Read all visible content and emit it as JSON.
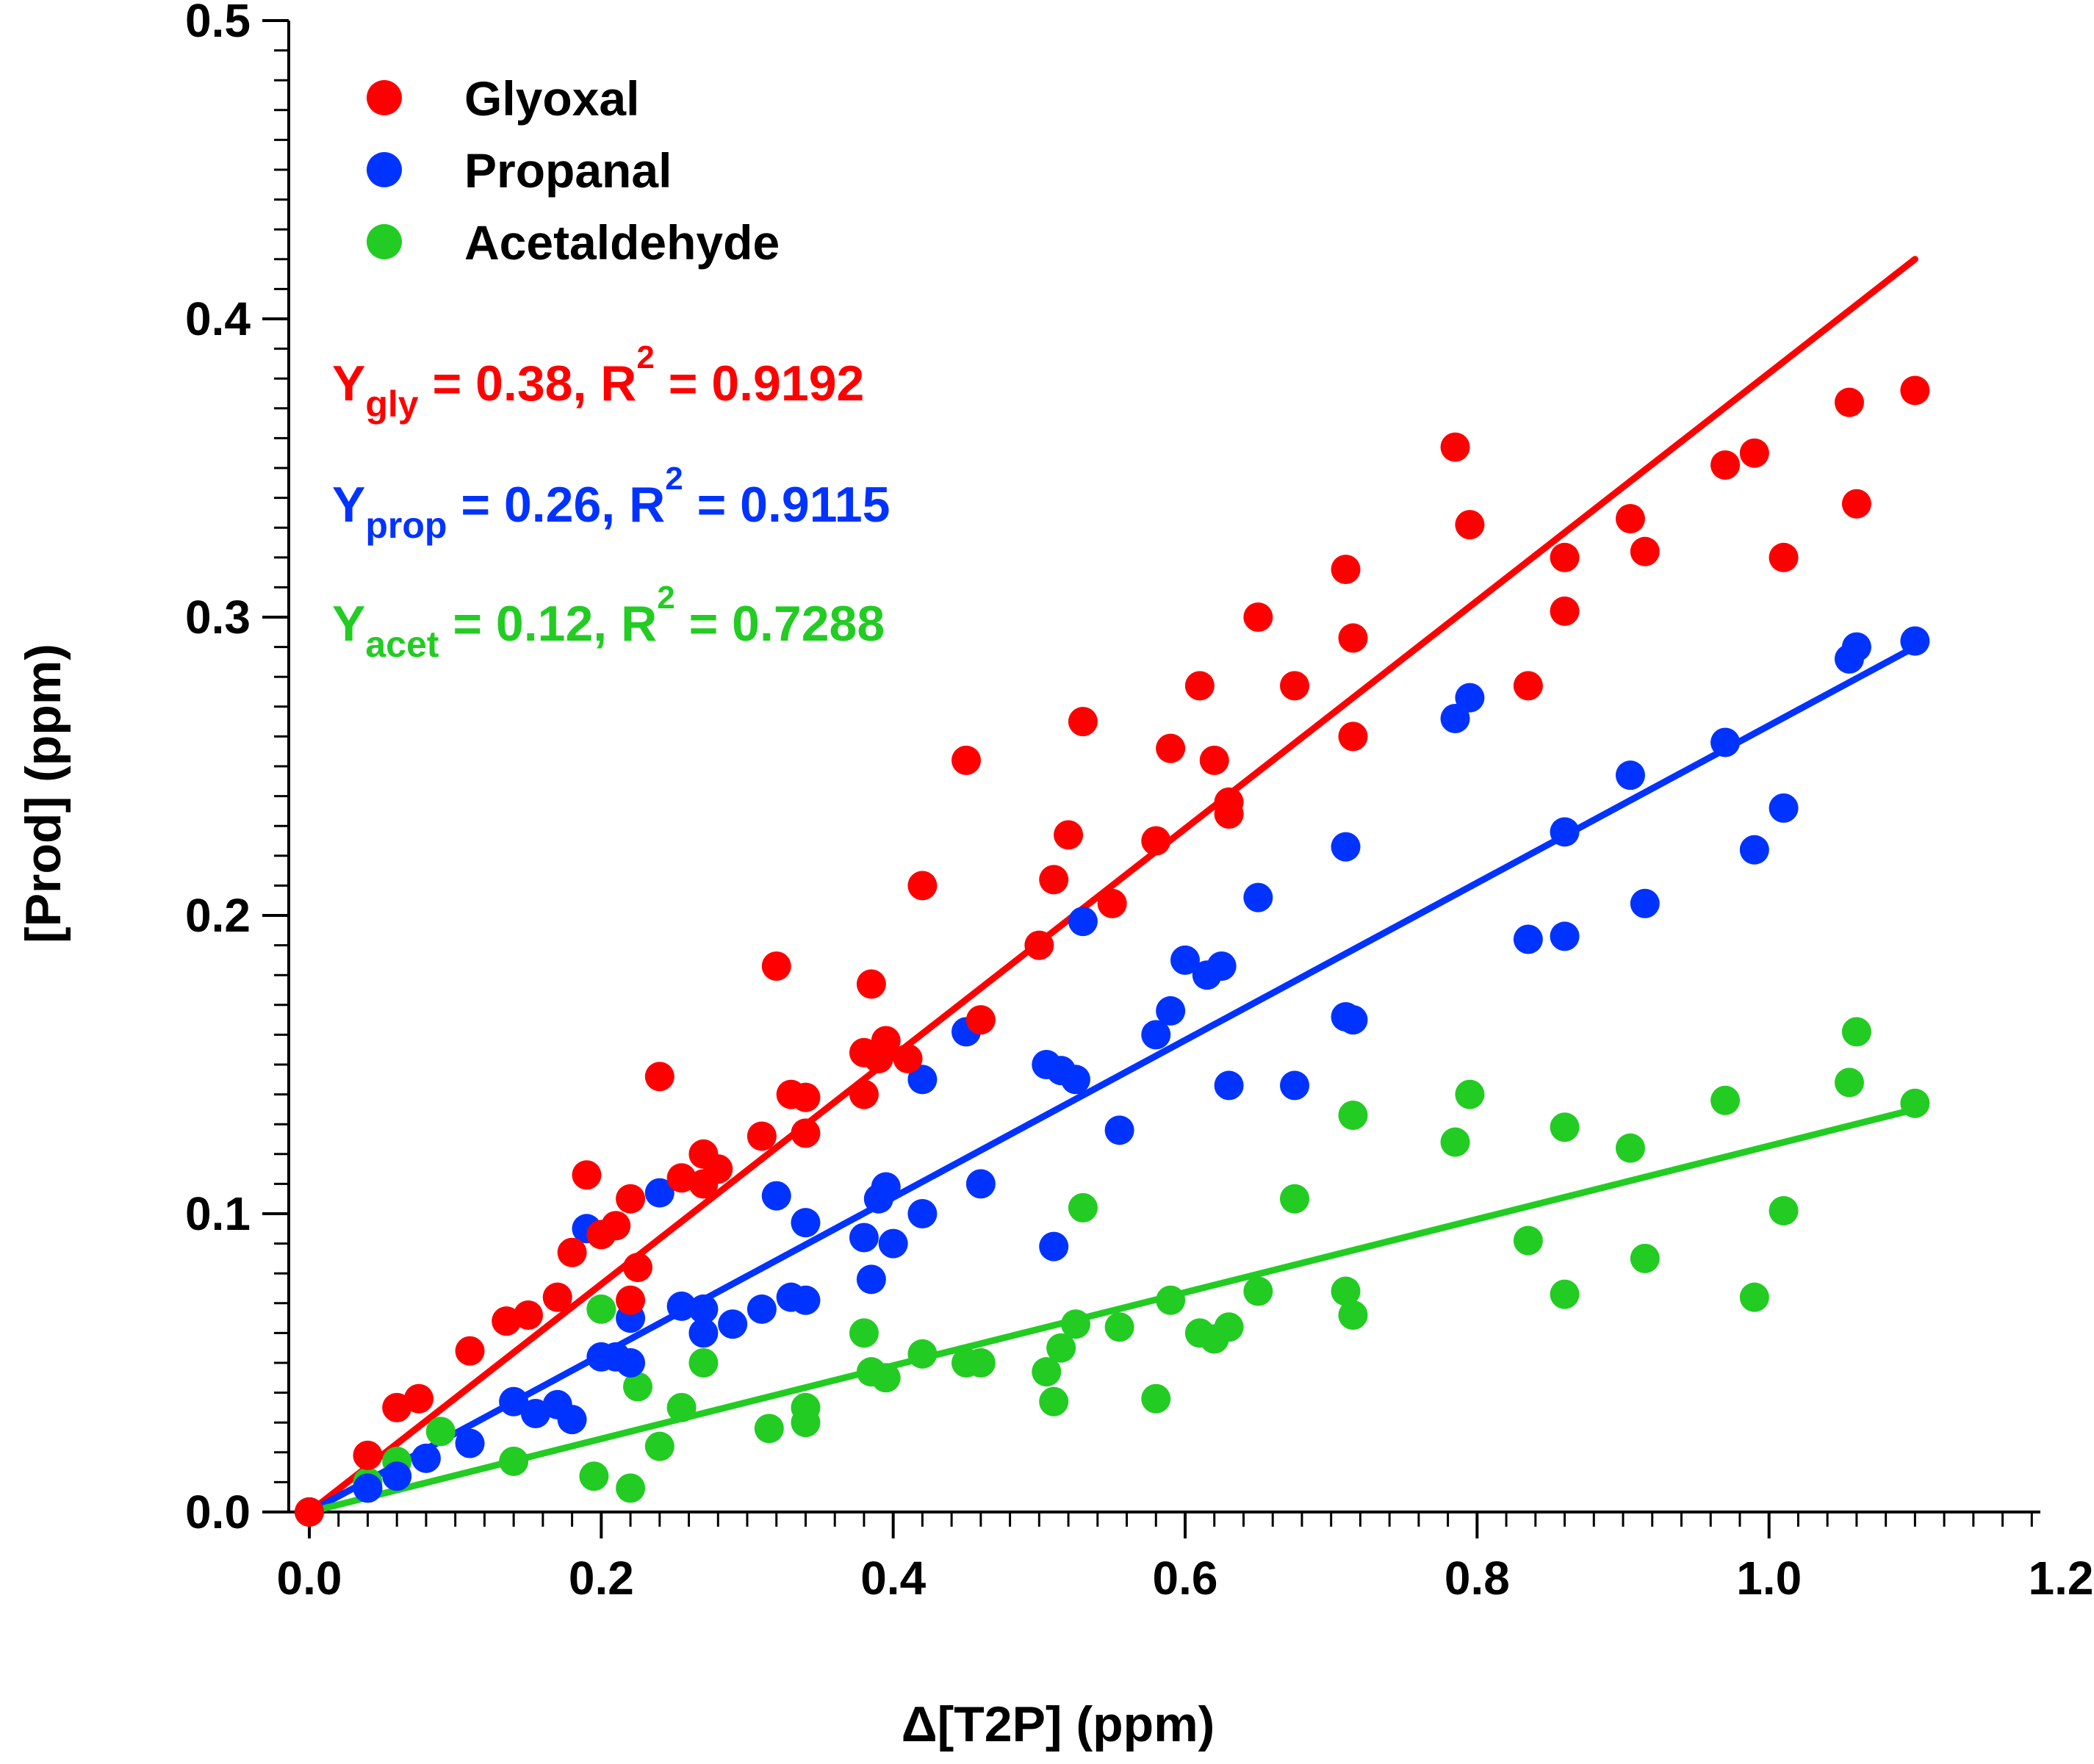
{
  "chart_data": {
    "type": "scatter",
    "xlabel": "Δ[T2P] (ppm)",
    "ylabel": "[Prod] (ppm)",
    "xlim": [
      0.0,
      1.2
    ],
    "ylim": [
      0.0,
      0.5
    ],
    "xticks": [
      "0.0",
      "0.2",
      "0.4",
      "0.6",
      "0.8",
      "1.0",
      "1.2"
    ],
    "yticks": [
      "0.0",
      "0.1",
      "0.2",
      "0.3",
      "0.4",
      "0.5"
    ],
    "xtick_values": [
      0.0,
      0.2,
      0.4,
      0.6,
      0.8,
      1.0,
      1.2
    ],
    "ytick_values": [
      0.0,
      0.1,
      0.2,
      0.3,
      0.4,
      0.5
    ],
    "grid": false,
    "legend_position": "top-left",
    "series": [
      {
        "name": "Glyoxal",
        "color": "#ff0000",
        "slope": 0.38,
        "fit_x": [
          0.0,
          1.1
        ],
        "fit_y": [
          0.0,
          0.42
        ],
        "annotation": {
          "symbol": "Y",
          "sub": "gly",
          "text": " = 0.38, R",
          "sup": "2",
          "tail": " = 0.9192"
        },
        "points": [
          [
            0.0,
            0.0
          ],
          [
            0.04,
            0.019
          ],
          [
            0.06,
            0.035
          ],
          [
            0.075,
            0.038
          ],
          [
            0.11,
            0.054
          ],
          [
            0.135,
            0.064
          ],
          [
            0.15,
            0.066
          ],
          [
            0.17,
            0.072
          ],
          [
            0.18,
            0.087
          ],
          [
            0.19,
            0.113
          ],
          [
            0.2,
            0.093
          ],
          [
            0.21,
            0.096
          ],
          [
            0.22,
            0.105
          ],
          [
            0.22,
            0.071
          ],
          [
            0.225,
            0.082
          ],
          [
            0.24,
            0.146
          ],
          [
            0.255,
            0.112
          ],
          [
            0.27,
            0.11
          ],
          [
            0.27,
            0.12
          ],
          [
            0.28,
            0.115
          ],
          [
            0.31,
            0.126
          ],
          [
            0.32,
            0.183
          ],
          [
            0.33,
            0.14
          ],
          [
            0.34,
            0.139
          ],
          [
            0.34,
            0.127
          ],
          [
            0.38,
            0.154
          ],
          [
            0.38,
            0.14
          ],
          [
            0.385,
            0.177
          ],
          [
            0.39,
            0.152
          ],
          [
            0.395,
            0.158
          ],
          [
            0.41,
            0.152
          ],
          [
            0.42,
            0.21
          ],
          [
            0.45,
            0.252
          ],
          [
            0.46,
            0.165
          ],
          [
            0.5,
            0.19
          ],
          [
            0.51,
            0.212
          ],
          [
            0.52,
            0.227
          ],
          [
            0.53,
            0.265
          ],
          [
            0.55,
            0.204
          ],
          [
            0.58,
            0.225
          ],
          [
            0.59,
            0.256
          ],
          [
            0.61,
            0.277
          ],
          [
            0.62,
            0.252
          ],
          [
            0.63,
            0.238
          ],
          [
            0.63,
            0.234
          ],
          [
            0.65,
            0.3
          ],
          [
            0.675,
            0.277
          ],
          [
            0.71,
            0.316
          ],
          [
            0.715,
            0.293
          ],
          [
            0.715,
            0.26
          ],
          [
            0.785,
            0.357
          ],
          [
            0.795,
            0.331
          ],
          [
            0.835,
            0.277
          ],
          [
            0.86,
            0.32
          ],
          [
            0.86,
            0.302
          ],
          [
            0.905,
            0.333
          ],
          [
            0.915,
            0.322
          ],
          [
            0.97,
            0.351
          ],
          [
            0.99,
            0.355
          ],
          [
            1.01,
            0.32
          ],
          [
            1.055,
            0.372
          ],
          [
            1.06,
            0.338
          ],
          [
            1.1,
            0.376
          ]
        ]
      },
      {
        "name": "Propanal",
        "color": "#0033ff",
        "slope": 0.26,
        "fit_x": [
          0.0,
          1.1
        ],
        "fit_y": [
          0.0,
          0.29
        ],
        "annotation": {
          "symbol": "Y",
          "sub": "prop",
          "text": " = 0.26, R",
          "sup": "2",
          "tail": " = 0.9115"
        },
        "points": [
          [
            0.0,
            0.0
          ],
          [
            0.04,
            0.008
          ],
          [
            0.06,
            0.012
          ],
          [
            0.08,
            0.018
          ],
          [
            0.11,
            0.023
          ],
          [
            0.14,
            0.037
          ],
          [
            0.155,
            0.033
          ],
          [
            0.17,
            0.036
          ],
          [
            0.18,
            0.031
          ],
          [
            0.19,
            0.095
          ],
          [
            0.2,
            0.052
          ],
          [
            0.21,
            0.052
          ],
          [
            0.22,
            0.065
          ],
          [
            0.22,
            0.05
          ],
          [
            0.24,
            0.107
          ],
          [
            0.255,
            0.069
          ],
          [
            0.27,
            0.06
          ],
          [
            0.27,
            0.068
          ],
          [
            0.29,
            0.063
          ],
          [
            0.31,
            0.068
          ],
          [
            0.32,
            0.106
          ],
          [
            0.33,
            0.072
          ],
          [
            0.34,
            0.097
          ],
          [
            0.34,
            0.071
          ],
          [
            0.38,
            0.092
          ],
          [
            0.385,
            0.078
          ],
          [
            0.39,
            0.105
          ],
          [
            0.395,
            0.109
          ],
          [
            0.4,
            0.09
          ],
          [
            0.42,
            0.1
          ],
          [
            0.42,
            0.145
          ],
          [
            0.45,
            0.161
          ],
          [
            0.46,
            0.11
          ],
          [
            0.505,
            0.15
          ],
          [
            0.51,
            0.089
          ],
          [
            0.515,
            0.148
          ],
          [
            0.525,
            0.145
          ],
          [
            0.53,
            0.198
          ],
          [
            0.555,
            0.128
          ],
          [
            0.58,
            0.16
          ],
          [
            0.59,
            0.168
          ],
          [
            0.6,
            0.185
          ],
          [
            0.615,
            0.18
          ],
          [
            0.625,
            0.183
          ],
          [
            0.63,
            0.143
          ],
          [
            0.65,
            0.206
          ],
          [
            0.675,
            0.143
          ],
          [
            0.71,
            0.223
          ],
          [
            0.71,
            0.166
          ],
          [
            0.715,
            0.165
          ],
          [
            0.785,
            0.266
          ],
          [
            0.795,
            0.273
          ],
          [
            0.835,
            0.192
          ],
          [
            0.86,
            0.193
          ],
          [
            0.86,
            0.228
          ],
          [
            0.905,
            0.247
          ],
          [
            0.915,
            0.204
          ],
          [
            0.97,
            0.258
          ],
          [
            0.99,
            0.222
          ],
          [
            1.01,
            0.236
          ],
          [
            1.055,
            0.286
          ],
          [
            1.06,
            0.29
          ],
          [
            1.1,
            0.292
          ]
        ]
      },
      {
        "name": "Acetaldehyde",
        "color": "#22cc22",
        "slope": 0.12,
        "fit_x": [
          0.0,
          1.1
        ],
        "fit_y": [
          0.0,
          0.135
        ],
        "annotation": {
          "symbol": "Y",
          "sub": "acet",
          "text": " = 0.12, R",
          "sup": "2",
          "tail": " = 0.7288"
        },
        "points": [
          [
            0.0,
            0.0
          ],
          [
            0.04,
            0.01
          ],
          [
            0.06,
            0.017
          ],
          [
            0.09,
            0.027
          ],
          [
            0.14,
            0.017
          ],
          [
            0.195,
            0.012
          ],
          [
            0.2,
            0.068
          ],
          [
            0.22,
            0.008
          ],
          [
            0.225,
            0.042
          ],
          [
            0.24,
            0.022
          ],
          [
            0.255,
            0.035
          ],
          [
            0.27,
            0.05
          ],
          [
            0.315,
            0.028
          ],
          [
            0.34,
            0.03
          ],
          [
            0.34,
            0.035
          ],
          [
            0.38,
            0.06
          ],
          [
            0.385,
            0.047
          ],
          [
            0.395,
            0.045
          ],
          [
            0.42,
            0.053
          ],
          [
            0.45,
            0.05
          ],
          [
            0.46,
            0.05
          ],
          [
            0.505,
            0.047
          ],
          [
            0.51,
            0.037
          ],
          [
            0.515,
            0.055
          ],
          [
            0.525,
            0.063
          ],
          [
            0.53,
            0.102
          ],
          [
            0.555,
            0.062
          ],
          [
            0.58,
            0.038
          ],
          [
            0.59,
            0.071
          ],
          [
            0.61,
            0.06
          ],
          [
            0.62,
            0.058
          ],
          [
            0.63,
            0.062
          ],
          [
            0.65,
            0.074
          ],
          [
            0.675,
            0.105
          ],
          [
            0.71,
            0.074
          ],
          [
            0.715,
            0.066
          ],
          [
            0.715,
            0.133
          ],
          [
            0.785,
            0.124
          ],
          [
            0.795,
            0.14
          ],
          [
            0.835,
            0.091
          ],
          [
            0.86,
            0.129
          ],
          [
            0.86,
            0.073
          ],
          [
            0.905,
            0.122
          ],
          [
            0.915,
            0.085
          ],
          [
            0.97,
            0.138
          ],
          [
            0.99,
            0.072
          ],
          [
            1.01,
            0.101
          ],
          [
            1.055,
            0.144
          ],
          [
            1.06,
            0.161
          ],
          [
            1.1,
            0.137
          ]
        ]
      }
    ]
  }
}
